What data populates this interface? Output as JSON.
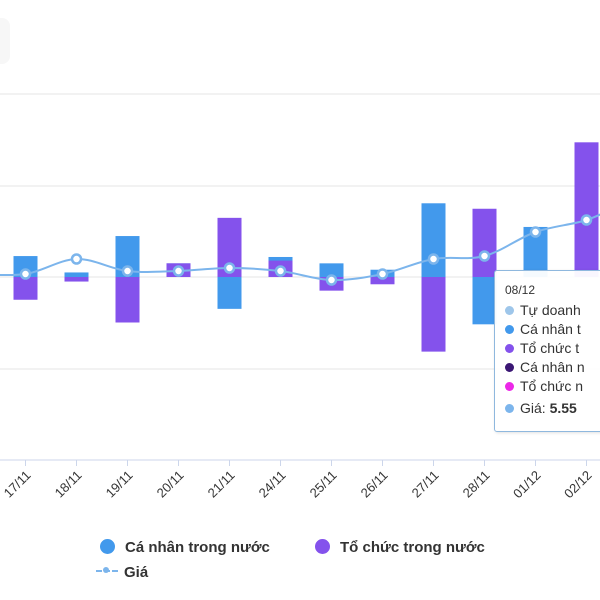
{
  "chart_data": {
    "type": "bar",
    "categories": [
      "17/11",
      "18/11",
      "19/11",
      "20/11",
      "21/11",
      "24/11",
      "25/11",
      "26/11",
      "27/11",
      "28/11",
      "01/12",
      "02/12"
    ],
    "ylim": [
      -2,
      2
    ],
    "series": [
      {
        "name": "Cá nhân trong nước",
        "color": "#4299ec",
        "values": [
          0.23,
          0.05,
          0.45,
          0.15,
          -0.35,
          0.22,
          0.15,
          0.08,
          0.81,
          -0.52,
          0.55,
          0
        ]
      },
      {
        "name": "Tổ chức trong nước",
        "color": "#8452ec",
        "values": [
          -0.25,
          -0.05,
          -0.5,
          0.15,
          0.65,
          0.18,
          -0.15,
          -0.08,
          -0.82,
          0.75,
          0,
          1.48
        ]
      }
    ],
    "price": {
      "name": "Giá",
      "color": "#7cb5ec",
      "min": 5.2,
      "max": 5.6,
      "values": [
        5.31,
        5.36,
        5.32,
        5.32,
        5.33,
        5.32,
        5.29,
        5.31,
        5.36,
        5.37,
        5.45,
        5.49
      ]
    }
  },
  "tooltip": {
    "date": "08/12",
    "rows": [
      {
        "color": "#9ec6ea",
        "label": "Tự doanh"
      },
      {
        "color": "#4299ec",
        "label": "Cá nhân t"
      },
      {
        "color": "#8452ec",
        "label": "Tổ chức t"
      },
      {
        "color": "#3b1774",
        "label": "Cá nhân n"
      },
      {
        "color": "#ec28e8",
        "label": "Tổ chức n"
      }
    ],
    "price_label": "Giá:",
    "price_value": "5.55",
    "price_color": "#7cb5ec"
  },
  "legend": {
    "individual": "Cá nhân trong nước",
    "organization": "Tổ chức trong nước",
    "price": "Giá"
  }
}
